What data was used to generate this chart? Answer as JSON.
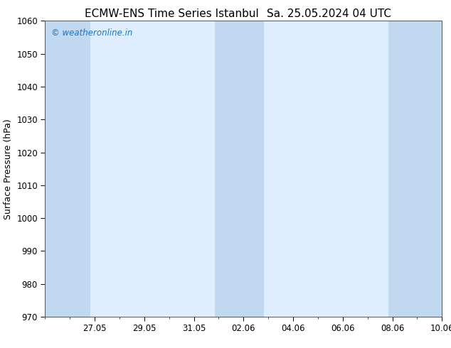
{
  "title_left": "ECMW-ENS Time Series Istanbul",
  "title_right": "Sa. 25.05.2024 04 UTC",
  "ylabel": "Surface Pressure (hPa)",
  "ylim": [
    970,
    1060
  ],
  "yticks": [
    970,
    980,
    990,
    1000,
    1010,
    1020,
    1030,
    1040,
    1050,
    1060
  ],
  "xtick_labels": [
    "27.05",
    "29.05",
    "31.05",
    "02.06",
    "04.06",
    "06.06",
    "08.06",
    "10.06"
  ],
  "watermark": "© weatheronline.in",
  "watermark_color": "#1878c8",
  "background_color": "#ffffff",
  "plot_bg_color": "#deeeff",
  "shaded_band_color": "#c0d8f0",
  "title_fontsize": 11,
  "label_fontsize": 9,
  "tick_fontsize": 8.5,
  "x_min": 0.0,
  "x_max": 16.0,
  "shaded_intervals": [
    [
      0.0,
      1.833
    ],
    [
      6.833,
      8.833
    ],
    [
      13.833,
      16.0
    ]
  ],
  "x_tick_positions": [
    2,
    4,
    6,
    8,
    10,
    12,
    14,
    16
  ]
}
